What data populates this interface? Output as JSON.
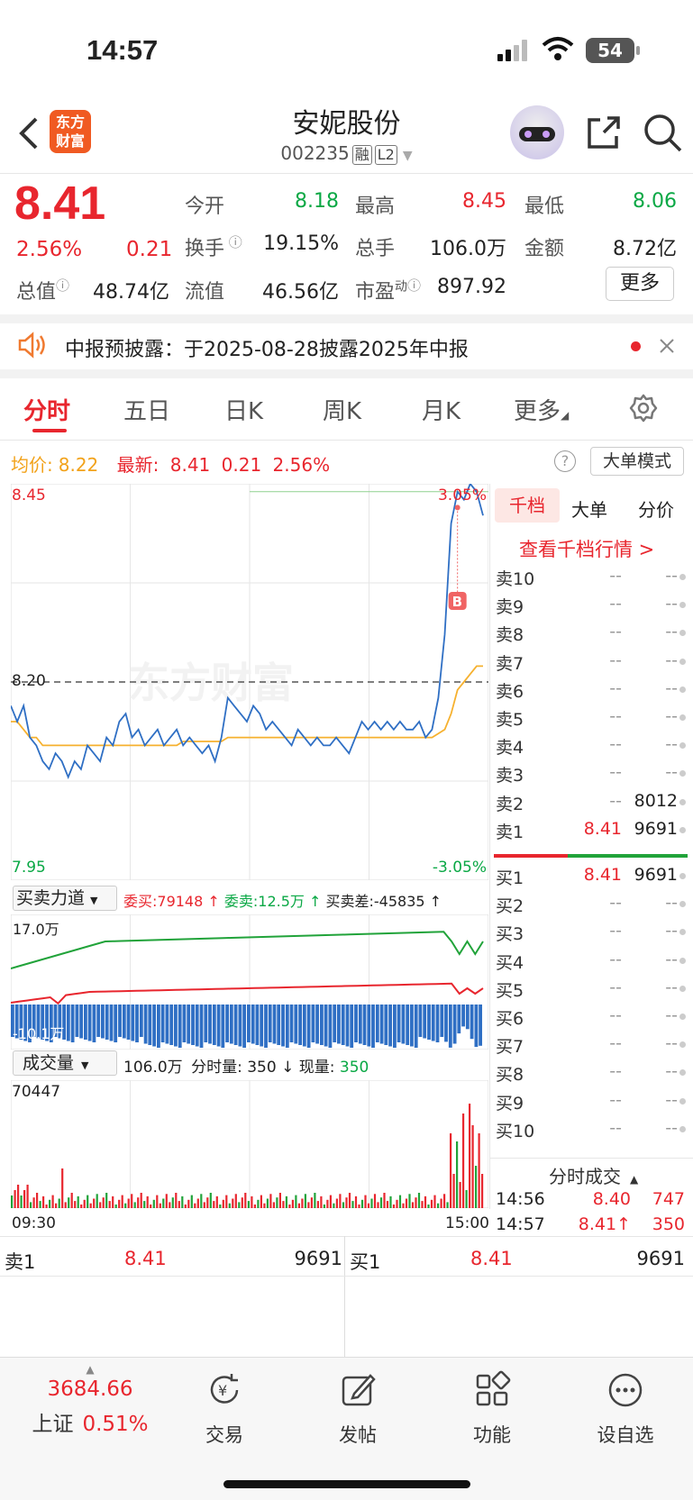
{
  "status_bar": {
    "time": "14:57",
    "battery": "54"
  },
  "header": {
    "logo_line1": "东方",
    "logo_line2": "财富",
    "title": "安妮股份",
    "code": "002235",
    "tag1": "融",
    "tag2": "L2"
  },
  "quote": {
    "price": "8.41",
    "change_pct": "2.56%",
    "change": "0.21",
    "open_label": "今开",
    "open": "8.18",
    "high_label": "最高",
    "high": "8.45",
    "low_label": "最低",
    "low": "8.06",
    "turnover_label": "换手",
    "turnover": "19.15%",
    "volume_label": "总手",
    "volume": "106.0万",
    "amount_label": "金额",
    "amount": "8.72亿",
    "mcap_label": "总值",
    "mcap": "48.74亿",
    "float_label": "流值",
    "float": "46.56亿",
    "pe_label": "市盈",
    "pe_sup": "动",
    "pe": "897.92",
    "more_button": "更多"
  },
  "notice": {
    "text": "中报预披露：于2025-08-28披露2025年中报"
  },
  "tabs": [
    "分时",
    "五日",
    "日K",
    "周K",
    "月K",
    "更多"
  ],
  "info_line": {
    "avg_label": "均价:",
    "avg": "8.22",
    "latest_label": "最新:",
    "latest": "8.41",
    "change": "0.21",
    "pct": "2.56%",
    "mode_button": "大单模式"
  },
  "chart_data": {
    "type": "line",
    "title": "",
    "y_top_label": "8.45",
    "y_mid_label": "8.20",
    "y_bottom_label": "7.95",
    "pct_top": "3.05%",
    "pct_bottom": "-3.05%",
    "ylim": [
      7.95,
      8.45
    ],
    "prev_close": 8.2,
    "series": [
      {
        "role": "price",
        "color": "#2f6fc4",
        "values": [
          8.17,
          8.15,
          8.17,
          8.13,
          8.12,
          8.1,
          8.09,
          8.11,
          8.1,
          8.08,
          8.1,
          8.09,
          8.12,
          8.11,
          8.1,
          8.13,
          8.12,
          8.15,
          8.16,
          8.13,
          8.14,
          8.12,
          8.13,
          8.14,
          8.12,
          8.13,
          8.14,
          8.12,
          8.13,
          8.12,
          8.11,
          8.12,
          8.1,
          8.13,
          8.18,
          8.17,
          8.16,
          8.15,
          8.17,
          8.16,
          8.14,
          8.15,
          8.14,
          8.13,
          8.12,
          8.14,
          8.13,
          8.12,
          8.13,
          8.12,
          8.12,
          8.13,
          8.12,
          8.11,
          8.13,
          8.15,
          8.14,
          8.15,
          8.14,
          8.15,
          8.14,
          8.15,
          8.14,
          8.14,
          8.15,
          8.13,
          8.14,
          8.18,
          8.26,
          8.4,
          8.44,
          8.43,
          8.45,
          8.44,
          8.41
        ]
      },
      {
        "role": "average",
        "color": "#f6b12f",
        "values": [
          8.15,
          8.15,
          8.14,
          8.13,
          8.13,
          8.12,
          8.12,
          8.12,
          8.12,
          8.12,
          8.12,
          8.12,
          8.12,
          8.12,
          8.12,
          8.12,
          8.12,
          8.12,
          8.12,
          8.12,
          8.12,
          8.12,
          8.12,
          8.12,
          8.12,
          8.12,
          8.12,
          8.125,
          8.125,
          8.125,
          8.125,
          8.125,
          8.125,
          8.125,
          8.13,
          8.13,
          8.13,
          8.13,
          8.13,
          8.13,
          8.13,
          8.13,
          8.13,
          8.13,
          8.13,
          8.13,
          8.13,
          8.13,
          8.13,
          8.13,
          8.13,
          8.13,
          8.13,
          8.13,
          8.13,
          8.13,
          8.13,
          8.13,
          8.13,
          8.13,
          8.13,
          8.13,
          8.13,
          8.13,
          8.13,
          8.13,
          8.13,
          8.135,
          8.14,
          8.16,
          8.19,
          8.2,
          8.21,
          8.22,
          8.22
        ]
      }
    ]
  },
  "force_panel": {
    "label": "买卖力道",
    "buy_label": "委买:79148",
    "sell_label": "委卖:12.5万",
    "diff_label": "买卖差:-45835",
    "top_value": "17.0万",
    "bottom_value": "-10.1万"
  },
  "volume_panel": {
    "label": "成交量",
    "total": "106.0万",
    "min_vol_label": "分时量: 350",
    "now_label": "现量:",
    "now_value": "350",
    "max_label": "70447",
    "time_start": "09:30",
    "time_end": "15:00"
  },
  "orderbook": {
    "tabs": [
      "千档",
      "大单",
      "分价"
    ],
    "link": "查看千档行情 >",
    "sells": [
      {
        "label": "卖10",
        "price": "--",
        "vol": "--"
      },
      {
        "label": "卖9",
        "price": "--",
        "vol": "--"
      },
      {
        "label": "卖8",
        "price": "--",
        "vol": "--"
      },
      {
        "label": "卖7",
        "price": "--",
        "vol": "--"
      },
      {
        "label": "卖6",
        "price": "--",
        "vol": "--"
      },
      {
        "label": "卖5",
        "price": "--",
        "vol": "--"
      },
      {
        "label": "卖4",
        "price": "--",
        "vol": "--"
      },
      {
        "label": "卖3",
        "price": "--",
        "vol": "--"
      },
      {
        "label": "卖2",
        "price": "--",
        "vol": "8012"
      },
      {
        "label": "卖1",
        "price": "8.41",
        "vol": "9691"
      }
    ],
    "buys": [
      {
        "label": "买1",
        "price": "8.41",
        "vol": "9691"
      },
      {
        "label": "买2",
        "price": "--",
        "vol": "--"
      },
      {
        "label": "买3",
        "price": "--",
        "vol": "--"
      },
      {
        "label": "买4",
        "price": "--",
        "vol": "--"
      },
      {
        "label": "买5",
        "price": "--",
        "vol": "--"
      },
      {
        "label": "买6",
        "price": "--",
        "vol": "--"
      },
      {
        "label": "买7",
        "price": "--",
        "vol": "--"
      },
      {
        "label": "买8",
        "price": "--",
        "vol": "--"
      },
      {
        "label": "买9",
        "price": "--",
        "vol": "--"
      },
      {
        "label": "买10",
        "price": "--",
        "vol": "--"
      }
    ],
    "trades_title": "分时成交",
    "trades": [
      {
        "time": "14:56",
        "price": "8.40",
        "vol": "747"
      },
      {
        "time": "14:57",
        "price": "8.41↑",
        "vol": "350"
      }
    ]
  },
  "bottom_quote": {
    "sell_label": "卖1",
    "sell_price": "8.41",
    "sell_vol": "9691",
    "buy_label": "买1",
    "buy_price": "8.41",
    "buy_vol": "9691"
  },
  "bottom_nav": {
    "index_value": "3684.66",
    "index_name": "上证",
    "index_pct": "0.51%",
    "items": [
      "交易",
      "发帖",
      "功能",
      "设自选"
    ]
  },
  "watermark": "东方财富"
}
